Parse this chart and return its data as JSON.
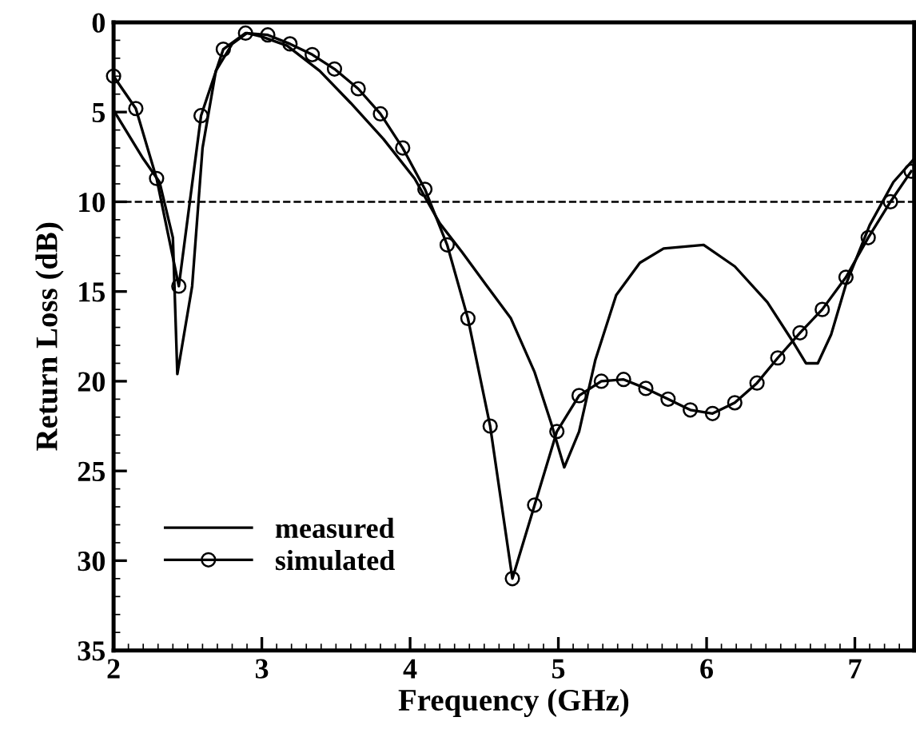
{
  "chart_data": {
    "type": "line",
    "xlabel": "Frequency (GHz)",
    "ylabel": "Return Loss (dB)",
    "xlim": [
      2,
      7.4
    ],
    "xticks": [
      2,
      3,
      4,
      5,
      6,
      7
    ],
    "ylim": [
      35,
      0
    ],
    "yticks": [
      0,
      5,
      10,
      15,
      20,
      25,
      30,
      35
    ],
    "grid": false,
    "legend": "lower left",
    "ref_lines": [
      {
        "axis": "y",
        "value": 10,
        "line_style": "dashed",
        "color": "#000000"
      }
    ],
    "series": [
      {
        "name": "measured",
        "color": "#000000",
        "marker": "none",
        "line_style": "solid",
        "x": [
          2.0,
          2.2,
          2.31,
          2.4,
          2.43,
          2.53,
          2.6,
          2.69,
          2.8,
          2.9,
          3.0,
          3.17,
          3.39,
          3.6,
          3.82,
          4.03,
          4.2,
          4.35,
          4.51,
          4.68,
          4.84,
          4.95,
          5.04,
          5.14,
          5.25,
          5.39,
          5.55,
          5.71,
          5.98,
          6.19,
          6.41,
          6.59,
          6.67,
          6.75,
          6.84,
          6.94,
          7.1,
          7.26,
          7.4
        ],
        "values": [
          4.9,
          7.6,
          8.9,
          12,
          19.6,
          14.7,
          7.0,
          2.7,
          1.2,
          0.6,
          0.8,
          1.3,
          2.7,
          4.5,
          6.5,
          8.7,
          11.2,
          12.8,
          14.6,
          16.5,
          19.5,
          22.3,
          24.8,
          22.8,
          18.8,
          15.2,
          13.4,
          12.6,
          12.4,
          13.6,
          15.6,
          17.9,
          19.0,
          19.0,
          17.4,
          14.6,
          11.3,
          8.9,
          7.6
        ]
      },
      {
        "name": "simulated",
        "color": "#000000",
        "marker": "circle",
        "line_style": "solid",
        "x": [
          2.0,
          2.15,
          2.29,
          2.44,
          2.59,
          2.74,
          2.89,
          3.04,
          3.19,
          3.34,
          3.49,
          3.65,
          3.8,
          3.95,
          4.1,
          4.25,
          4.39,
          4.54,
          4.69,
          4.84,
          4.99,
          5.14,
          5.29,
          5.44,
          5.59,
          5.74,
          5.89,
          6.04,
          6.19,
          6.34,
          6.48,
          6.63,
          6.78,
          6.94,
          7.09,
          7.24,
          7.38
        ],
        "values": [
          3.0,
          4.8,
          8.7,
          14.7,
          5.2,
          1.5,
          0.6,
          0.7,
          1.2,
          1.8,
          2.6,
          3.7,
          5.1,
          7.0,
          9.3,
          12.4,
          16.5,
          22.5,
          31.0,
          26.9,
          22.8,
          20.8,
          20.0,
          19.9,
          20.4,
          21.0,
          21.6,
          21.8,
          21.2,
          20.1,
          18.7,
          17.3,
          16.0,
          14.2,
          12.0,
          10.0,
          8.3
        ]
      }
    ]
  }
}
